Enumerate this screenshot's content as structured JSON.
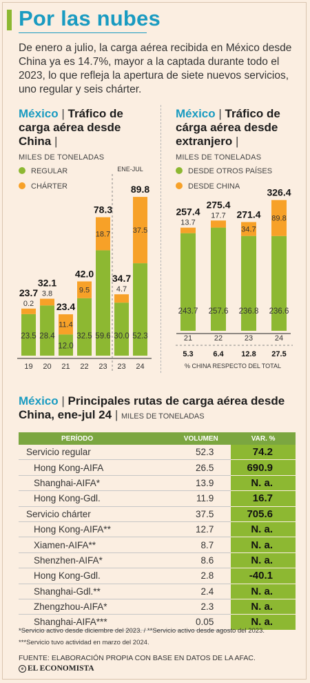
{
  "header": {
    "title": "Por las nubes",
    "intro": "De enero a julio, la carga aérea recibida en México desde China ya es 14.7%, mayor a la captada durante todo el 2023, lo que refleja la apertura de siete nuevos servicios, uno regular y seis chárter."
  },
  "colors": {
    "green": "#8db832",
    "orange": "#f7a128",
    "blue": "#1a9bc1"
  },
  "chart_left": {
    "country": "México",
    "title": "Tráfico de carga aérea desde China",
    "unit": "MILES DE TONELADAS",
    "legend": [
      "REGULAR",
      "CHÁRTER"
    ],
    "period_label": "ENE-JUL"
  },
  "chart_right": {
    "country": "México",
    "title": "Tráfico de cárga aérea desde extranjero",
    "unit": "MILES DE TONELADAS",
    "legend": [
      "DESDE OTROS PAÍSES",
      "DESDE CHINA"
    ],
    "pct_label": "% CHINA RESPECTO DEL TOTAL"
  },
  "chart_data": [
    {
      "type": "bar",
      "stacked": true,
      "categories": [
        "19",
        "20",
        "21",
        "22",
        "23",
        "23",
        "24"
      ],
      "series": [
        {
          "name": "REGULAR",
          "values": [
            23.5,
            28.4,
            12.0,
            32.5,
            59.6,
            30.0,
            52.3
          ]
        },
        {
          "name": "CHÁRTER",
          "values": [
            0.2,
            3.8,
            11.4,
            9.5,
            18.7,
            4.7,
            37.5
          ]
        }
      ],
      "totals": [
        23.7,
        32.1,
        23.4,
        42.0,
        78.3,
        34.7,
        89.8
      ],
      "segment_labels_bottom": [
        "23.5",
        "28.4",
        "12.0",
        "32.5",
        "59.6",
        "30.0",
        "52.3"
      ],
      "segment_labels_top": [
        "0.2",
        "3.8",
        "11.4",
        "9.5",
        "18.7",
        "4.7",
        "37.5"
      ],
      "total_labels": [
        "23.7",
        "32.1",
        "23.4",
        "42.0",
        "78.3",
        "34.7",
        "89.8"
      ],
      "note": "ENE-JUL"
    },
    {
      "type": "bar",
      "stacked": true,
      "categories": [
        "21",
        "22",
        "23",
        "24"
      ],
      "series": [
        {
          "name": "DESDE OTROS PAÍSES",
          "values": [
            243.7,
            257.6,
            236.8,
            236.6
          ]
        },
        {
          "name": "DESDE CHINA",
          "values": [
            13.7,
            17.7,
            34.7,
            89.8
          ]
        }
      ],
      "totals": [
        257.4,
        275.4,
        271.4,
        326.4
      ],
      "segment_labels_bottom": [
        "243.7",
        "257.6",
        "236.8",
        "236.6"
      ],
      "segment_labels_top": [
        "13.7",
        "17.7",
        "34.7",
        "89.8"
      ],
      "total_labels": [
        "257.4",
        "275.4",
        "271.4",
        "326.4"
      ],
      "china_share": [
        "5.3",
        "6.4",
        "12.8",
        "27.5"
      ]
    }
  ],
  "table": {
    "country": "México",
    "title": "Principales rutas de carga aérea desde China, ene-jul 24",
    "unit": "MILES DE TONELADAS",
    "headers": [
      "PERÍODO",
      "VOLUMEN",
      "VAR. %"
    ],
    "rows": [
      {
        "name": "Servicio regular",
        "volume": "52.3",
        "var": "74.2",
        "level": 0
      },
      {
        "name": "Hong Kong-AIFA",
        "volume": "26.5",
        "var": "690.9",
        "level": 1
      },
      {
        "name": "Shanghai-AIFA*",
        "volume": "13.9",
        "var": "N. a.",
        "level": 1
      },
      {
        "name": "Hong Kong-Gdl.",
        "volume": "11.9",
        "var": "16.7",
        "level": 1
      },
      {
        "name": "Servicio chárter",
        "volume": "37.5",
        "var": "705.6",
        "level": 0
      },
      {
        "name": "Hong Kong-AIFA**",
        "volume": "12.7",
        "var": "N. a.",
        "level": 1
      },
      {
        "name": "Xiamen-AIFA**",
        "volume": "8.7",
        "var": "N. a.",
        "level": 1
      },
      {
        "name": "Shenzhen-AIFA*",
        "volume": "8.6",
        "var": "N. a.",
        "level": 1
      },
      {
        "name": "Hong Kong-Gdl.",
        "volume": "2.8",
        "var": "-40.1",
        "level": 1
      },
      {
        "name": "Shanghai-Gdl.**",
        "volume": "2.4",
        "var": "N. a.",
        "level": 1
      },
      {
        "name": "Zhengzhou-AIFA*",
        "volume": "2.3",
        "var": "N. a.",
        "level": 1
      },
      {
        "name": "Shanghai-AIFA***",
        "volume": "0.05",
        "var": "N. a.",
        "level": 1
      }
    ]
  },
  "footnotes": {
    "line1": "*Servicio activo desde diciembre del 2023. / **Servicio activo desde agosto del 2023.",
    "line2": "***Servicio tuvo actividad en marzo del 2024.",
    "source": "FUENTE: ELABORACIÓN PROPIA CON BASE EN DATOS DE LA AFAC.",
    "brand": "EL ECONOMISTA"
  }
}
